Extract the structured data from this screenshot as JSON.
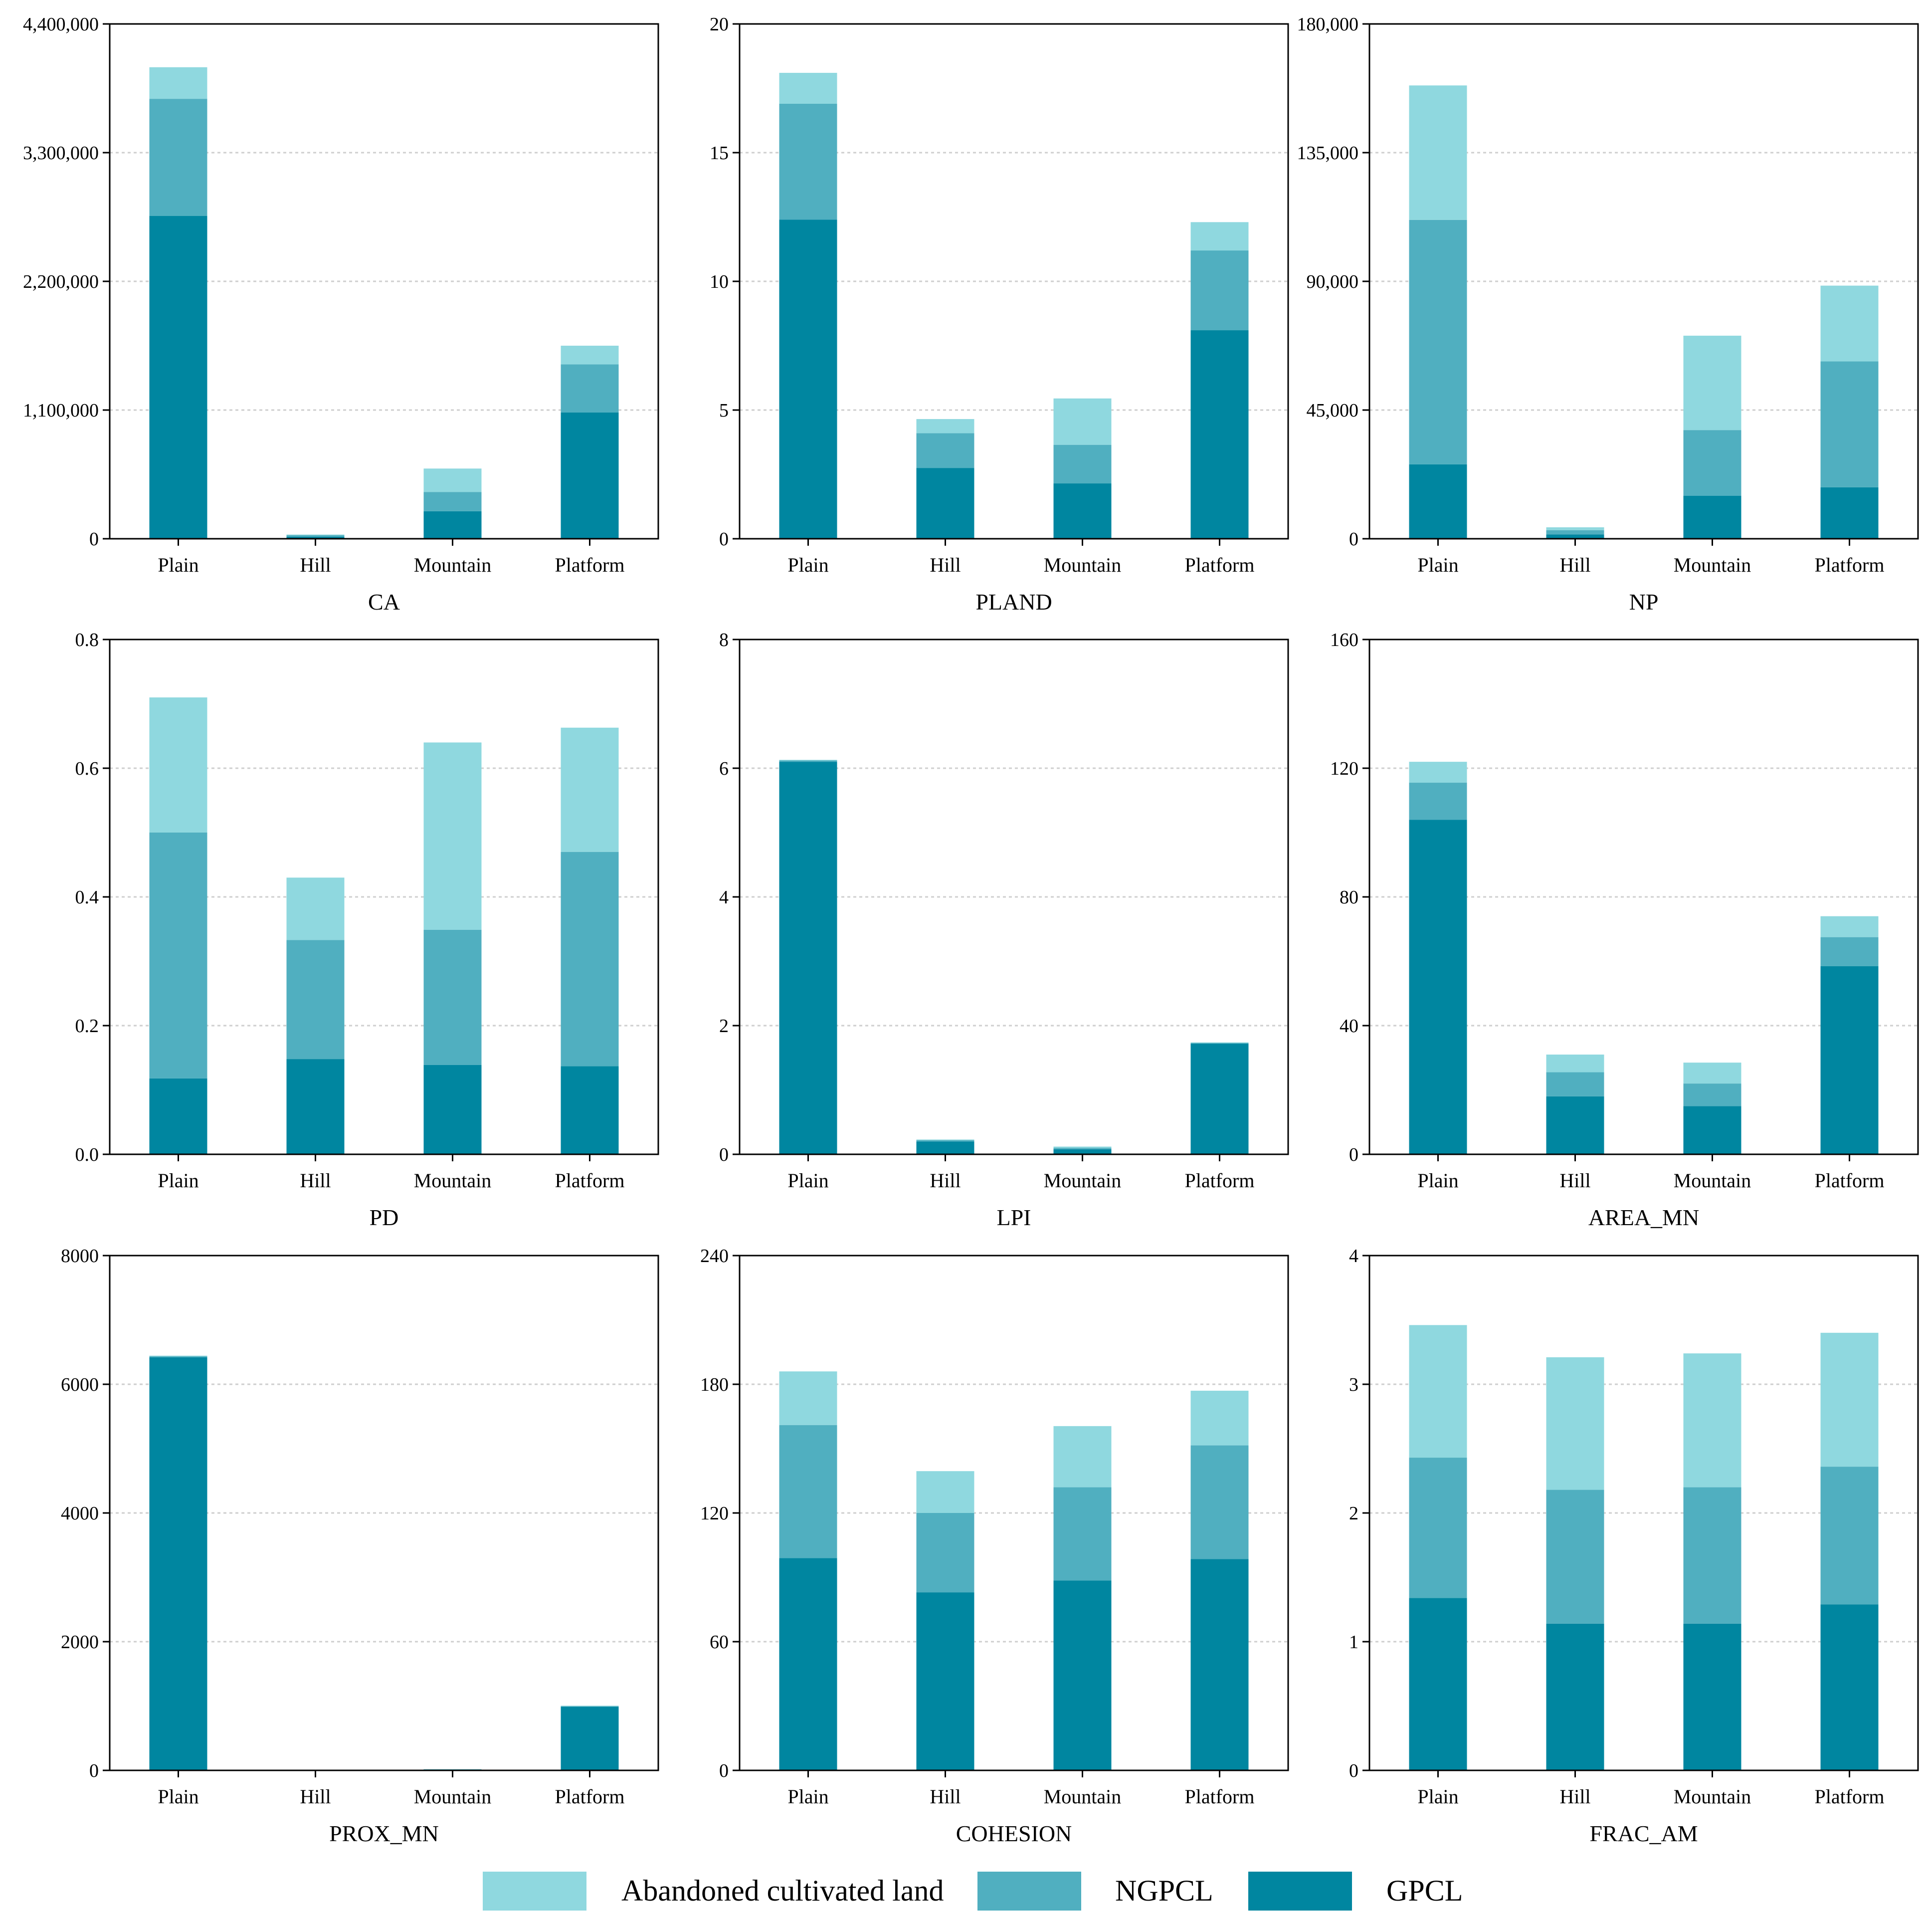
{
  "chart_data": [
    {
      "type": "bar",
      "stacked": true,
      "title": "",
      "xlabel": "CA",
      "ylabel": "",
      "categories": [
        "Plain",
        "Hill",
        "Mountain",
        "Platform"
      ],
      "ylim": [
        0,
        4400000
      ],
      "yticks": [
        0,
        1100000,
        2200000,
        3300000,
        4400000
      ],
      "ytick_labels": [
        "0",
        "1,100,000",
        "2,200,000",
        "3,300,000",
        "4,400,000"
      ],
      "grid": "horizontal-dotted",
      "series": [
        {
          "name": "GPCL",
          "values": [
            2760000,
            18000,
            235000,
            1080000
          ]
        },
        {
          "name": "NGPCL",
          "values": [
            1000000,
            12000,
            165000,
            410000
          ]
        },
        {
          "name": "Abandoned cultivated land",
          "values": [
            270000,
            6000,
            200000,
            160000
          ]
        }
      ]
    },
    {
      "type": "bar",
      "stacked": true,
      "title": "",
      "xlabel": "PLAND",
      "ylabel": "",
      "categories": [
        "Plain",
        "Hill",
        "Mountain",
        "Platform"
      ],
      "ylim": [
        0,
        20
      ],
      "yticks": [
        0,
        5,
        10,
        15,
        20
      ],
      "ytick_labels": [
        "0",
        "5",
        "10",
        "15",
        "20"
      ],
      "grid": "horizontal-dotted",
      "series": [
        {
          "name": "GPCL",
          "values": [
            12.4,
            2.75,
            2.15,
            8.1
          ]
        },
        {
          "name": "NGPCL",
          "values": [
            4.5,
            1.35,
            1.5,
            3.1
          ]
        },
        {
          "name": "Abandoned cultivated land",
          "values": [
            1.2,
            0.55,
            1.8,
            1.1
          ]
        }
      ]
    },
    {
      "type": "bar",
      "stacked": true,
      "title": "",
      "xlabel": "NP",
      "ylabel": "",
      "categories": [
        "Plain",
        "Hill",
        "Mountain",
        "Platform"
      ],
      "ylim": [
        0,
        180000
      ],
      "yticks": [
        0,
        45000,
        90000,
        135000,
        180000
      ],
      "ytick_labels": [
        "0",
        "45,000",
        "90,000",
        "135,000",
        "180,000"
      ],
      "grid": "horizontal-dotted",
      "series": [
        {
          "name": "GPCL",
          "values": [
            26000,
            1500,
            15000,
            18000
          ]
        },
        {
          "name": "NGPCL",
          "values": [
            85500,
            1500,
            23000,
            44000
          ]
        },
        {
          "name": "Abandoned cultivated land",
          "values": [
            47000,
            1000,
            33000,
            26500
          ]
        }
      ]
    },
    {
      "type": "bar",
      "stacked": true,
      "title": "",
      "xlabel": "PD",
      "ylabel": "",
      "categories": [
        "Plain",
        "Hill",
        "Mountain",
        "Platform"
      ],
      "ylim": [
        0,
        0.8
      ],
      "yticks": [
        0,
        0.2,
        0.4,
        0.6,
        0.8
      ],
      "ytick_labels": [
        "0.0",
        "0.2",
        "0.4",
        "0.6",
        "0.8"
      ],
      "grid": "horizontal-dotted",
      "series": [
        {
          "name": "GPCL",
          "values": [
            0.118,
            0.148,
            0.139,
            0.137
          ]
        },
        {
          "name": "NGPCL",
          "values": [
            0.382,
            0.185,
            0.21,
            0.333
          ]
        },
        {
          "name": "Abandoned cultivated land",
          "values": [
            0.21,
            0.097,
            0.291,
            0.193
          ]
        }
      ]
    },
    {
      "type": "bar",
      "stacked": true,
      "title": "",
      "xlabel": "LPI",
      "ylabel": "",
      "categories": [
        "Plain",
        "Hill",
        "Mountain",
        "Platform"
      ],
      "ylim": [
        0,
        8
      ],
      "yticks": [
        0,
        2,
        4,
        6,
        8
      ],
      "ytick_labels": [
        "0",
        "2",
        "4",
        "6",
        "8"
      ],
      "grid": "horizontal-dotted",
      "series": [
        {
          "name": "GPCL",
          "values": [
            6.1,
            0.2,
            0.08,
            1.72
          ]
        },
        {
          "name": "NGPCL",
          "values": [
            0.02,
            0.02,
            0.02,
            0.01
          ]
        },
        {
          "name": "Abandoned cultivated land",
          "values": [
            0.01,
            0.01,
            0.02,
            0.01
          ]
        }
      ]
    },
    {
      "type": "bar",
      "stacked": true,
      "title": "",
      "xlabel": "AREA_MN",
      "ylabel": "",
      "categories": [
        "Plain",
        "Hill",
        "Mountain",
        "Platform"
      ],
      "ylim": [
        0,
        160
      ],
      "yticks": [
        0,
        40,
        80,
        120,
        160
      ],
      "ytick_labels": [
        "0",
        "40",
        "80",
        "120",
        "160"
      ],
      "grid": "horizontal-dotted",
      "series": [
        {
          "name": "GPCL",
          "values": [
            104,
            18,
            15,
            58.5
          ]
        },
        {
          "name": "NGPCL",
          "values": [
            11.5,
            7.5,
            7,
            9
          ]
        },
        {
          "name": "Abandoned cultivated land",
          "values": [
            6.5,
            5.5,
            6.5,
            6.5
          ]
        }
      ]
    },
    {
      "type": "bar",
      "stacked": true,
      "title": "",
      "xlabel": "PROX_MN",
      "ylabel": "",
      "categories": [
        "Plain",
        "Hill",
        "Mountain",
        "Platform"
      ],
      "ylim": [
        0,
        8000
      ],
      "yticks": [
        0,
        2000,
        4000,
        6000,
        8000
      ],
      "ytick_labels": [
        "0",
        "2000",
        "4000",
        "6000",
        "8000"
      ],
      "grid": "horizontal-dotted",
      "series": [
        {
          "name": "GPCL",
          "values": [
            6420,
            2,
            10,
            990
          ]
        },
        {
          "name": "NGPCL",
          "values": [
            15,
            1,
            5,
            8
          ]
        },
        {
          "name": "Abandoned cultivated land",
          "values": [
            10,
            1,
            5,
            7
          ]
        }
      ]
    },
    {
      "type": "bar",
      "stacked": true,
      "title": "",
      "xlabel": "COHESION",
      "ylabel": "",
      "categories": [
        "Plain",
        "Hill",
        "Mountain",
        "Platform"
      ],
      "ylim": [
        0,
        240
      ],
      "yticks": [
        0,
        60,
        120,
        180,
        240
      ],
      "ytick_labels": [
        "0",
        "60",
        "120",
        "180",
        "240"
      ],
      "grid": "horizontal-dotted",
      "series": [
        {
          "name": "GPCL",
          "values": [
            99,
            83,
            88.5,
            98.5
          ]
        },
        {
          "name": "NGPCL",
          "values": [
            62,
            37,
            43.5,
            53
          ]
        },
        {
          "name": "Abandoned cultivated land",
          "values": [
            25,
            19.5,
            28.5,
            25.5
          ]
        }
      ]
    },
    {
      "type": "bar",
      "stacked": true,
      "title": "",
      "xlabel": "FRAC_AM",
      "ylabel": "",
      "categories": [
        "Plain",
        "Hill",
        "Mountain",
        "Platform"
      ],
      "ylim": [
        0,
        4
      ],
      "yticks": [
        0,
        1,
        2,
        3,
        4
      ],
      "ytick_labels": [
        "0",
        "1",
        "2",
        "3",
        "4"
      ],
      "grid": "horizontal-dotted",
      "series": [
        {
          "name": "GPCL",
          "values": [
            1.34,
            1.14,
            1.14,
            1.29
          ]
        },
        {
          "name": "NGPCL",
          "values": [
            1.09,
            1.04,
            1.06,
            1.07
          ]
        },
        {
          "name": "Abandoned cultivated land",
          "values": [
            1.03,
            1.03,
            1.04,
            1.04
          ]
        }
      ]
    }
  ],
  "legend": {
    "position": "bottom-center",
    "items": [
      {
        "name": "Abandoned cultivated land",
        "color": "#8fd8df"
      },
      {
        "name": "NGPCL",
        "color": "#50afc0"
      },
      {
        "name": "GPCL",
        "color": "#0086a0"
      }
    ]
  },
  "colors": {
    "GPCL": "#0086a0",
    "NGPCL": "#50afc0",
    "Abandoned cultivated land": "#8fd8df",
    "grid": "#cfcfcf",
    "axis": "#000000"
  }
}
